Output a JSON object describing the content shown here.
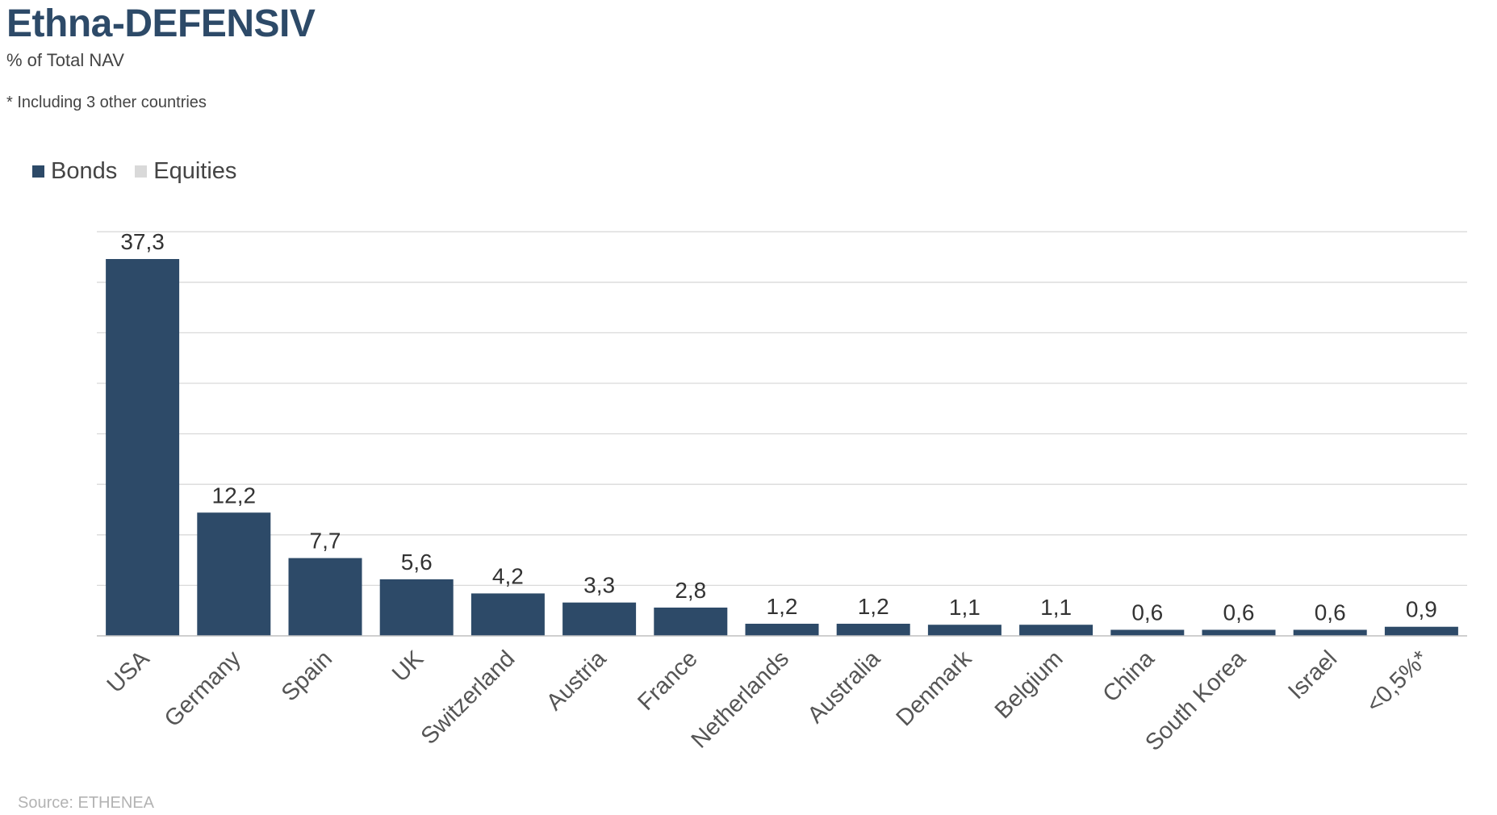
{
  "header": {
    "title": "Ethna-DEFENSIV",
    "subtitle": "% of Total NAV",
    "footnote": "* Including 3 other countries"
  },
  "legend": {
    "items": [
      {
        "label": "Bonds",
        "color": "#2d4a68"
      },
      {
        "label": "Equities",
        "color": "#d9d9d9"
      }
    ]
  },
  "footer": {
    "source": "Source: ETHENEA"
  },
  "chart_data": {
    "type": "bar",
    "title": "Ethna-DEFENSIV",
    "subtitle": "% of Total NAV",
    "categories": [
      "USA",
      "Germany",
      "Spain",
      "UK",
      "Switzerland",
      "Austria",
      "France",
      "Netherlands",
      "Australia",
      "Denmark",
      "Belgium",
      "China",
      "South Korea",
      "Israel",
      "<0,5%*"
    ],
    "series": [
      {
        "name": "Bonds",
        "color": "#2d4a68",
        "values": [
          37.3,
          12.2,
          7.7,
          5.6,
          4.2,
          3.3,
          2.8,
          1.2,
          1.2,
          1.1,
          1.1,
          0.6,
          0.6,
          0.6,
          0.9
        ],
        "labels": [
          "37,3",
          "12,2",
          "7,7",
          "5,6",
          "4,2",
          "3,3",
          "2,8",
          "1,2",
          "1,2",
          "1,1",
          "1,1",
          "0,6",
          "0,6",
          "0,6",
          "0,9"
        ]
      },
      {
        "name": "Equities",
        "color": "#d9d9d9",
        "values": [
          0,
          0,
          0,
          0,
          0,
          0,
          0,
          0,
          0,
          0,
          0,
          0,
          0,
          0,
          0
        ]
      }
    ],
    "ylim": [
      0,
      40
    ],
    "grid": true,
    "legend_position": "top-left",
    "xlabel": "",
    "ylabel": ""
  }
}
